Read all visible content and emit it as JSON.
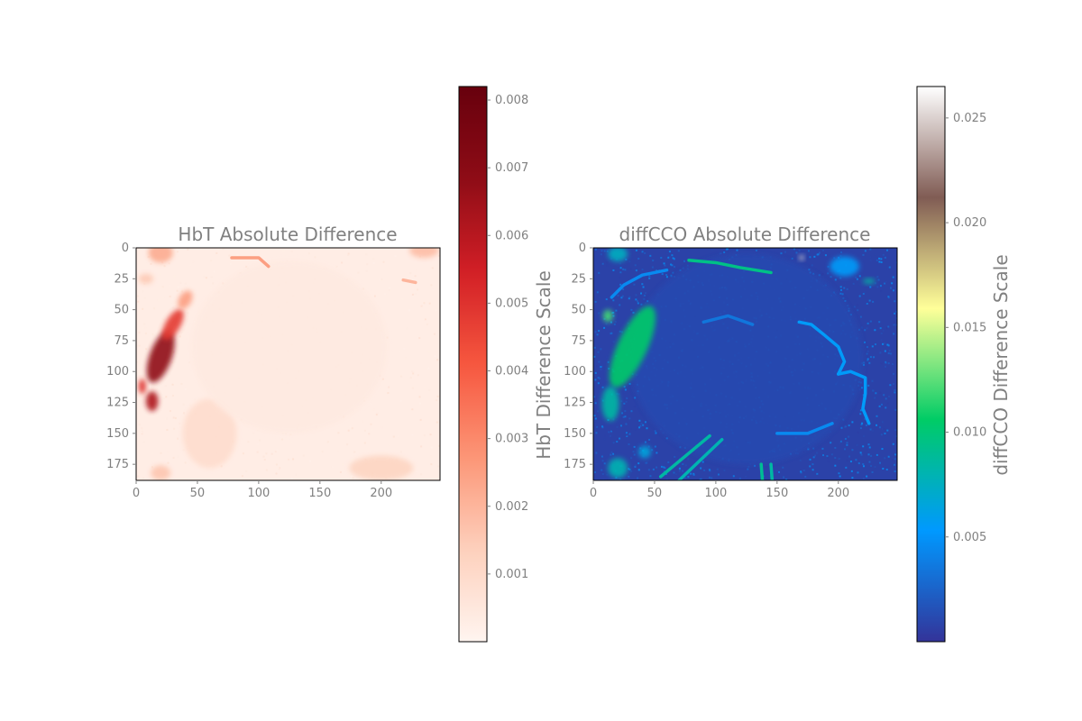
{
  "chart_data": [
    {
      "type": "heatmap",
      "title": "HbT Absolute Difference",
      "colormap": "Reds",
      "colormap_stops": [
        "#fff5f0",
        "#fdd0bc",
        "#fc9576",
        "#f6573f",
        "#d21f26",
        "#8e0c16",
        "#67000d"
      ],
      "xlim": [
        0,
        248
      ],
      "ylim": [
        188,
        0
      ],
      "x_ticks": [
        0,
        50,
        100,
        150,
        200
      ],
      "y_ticks": [
        0,
        25,
        50,
        75,
        100,
        125,
        150,
        175
      ],
      "colorbar": {
        "label": "HbT Difference Scale",
        "range": [
          0,
          0.0082
        ],
        "ticks": [
          "0.001",
          "0.002",
          "0.003",
          "0.004",
          "0.005",
          "0.006",
          "0.007",
          "0.008"
        ]
      },
      "features": [
        {
          "kind": "ellipse",
          "x": 20,
          "y": 88,
          "rx": 9,
          "ry": 22,
          "value": 0.0068,
          "rot": 20
        },
        {
          "kind": "ellipse",
          "x": 30,
          "y": 62,
          "rx": 6,
          "ry": 14,
          "value": 0.0048,
          "rot": 30
        },
        {
          "kind": "ellipse",
          "x": 13,
          "y": 124,
          "rx": 5,
          "ry": 8,
          "value": 0.0062,
          "rot": 0
        },
        {
          "kind": "ellipse",
          "x": 5,
          "y": 112,
          "rx": 3,
          "ry": 6,
          "value": 0.005,
          "rot": 0
        },
        {
          "kind": "ellipse",
          "x": 40,
          "y": 42,
          "rx": 5,
          "ry": 8,
          "value": 0.0025,
          "rot": 30
        },
        {
          "kind": "ellipse",
          "x": 20,
          "y": 4,
          "rx": 10,
          "ry": 8,
          "value": 0.0022,
          "rot": 0
        },
        {
          "kind": "ellipse",
          "x": 235,
          "y": 2,
          "rx": 12,
          "ry": 6,
          "value": 0.0018,
          "rot": 0
        },
        {
          "kind": "ellipse",
          "x": 8,
          "y": 25,
          "rx": 6,
          "ry": 4,
          "value": 0.0015,
          "rot": 0
        },
        {
          "kind": "ellipse",
          "x": 20,
          "y": 182,
          "rx": 8,
          "ry": 6,
          "value": 0.0016,
          "rot": 0
        },
        {
          "kind": "ellipse",
          "x": 60,
          "y": 150,
          "rx": 22,
          "ry": 28,
          "value": 0.0009,
          "rot": 0
        },
        {
          "kind": "ellipse",
          "x": 200,
          "y": 178,
          "rx": 26,
          "ry": 10,
          "value": 0.0012,
          "rot": 0
        },
        {
          "kind": "ellipse",
          "x": 125,
          "y": 80,
          "rx": 80,
          "ry": 70,
          "value": 0.0004,
          "rot": 0
        },
        {
          "kind": "line",
          "points": [
            [
              78,
              8
            ],
            [
              100,
              8
            ],
            [
              108,
              15
            ]
          ],
          "value": 0.0025
        },
        {
          "kind": "line",
          "points": [
            [
              218,
              26
            ],
            [
              228,
              28
            ]
          ],
          "value": 0.002
        }
      ]
    },
    {
      "type": "heatmap",
      "title": "diffCCO Absolute Difference",
      "colormap": "terrain_r",
      "colormap_stops": [
        "#333399",
        "#0099ff",
        "#00cc66",
        "#ffff99",
        "#805c54",
        "#ffffff"
      ],
      "xlim": [
        0,
        248
      ],
      "ylim": [
        188,
        0
      ],
      "x_ticks": [
        0,
        50,
        100,
        150,
        200
      ],
      "y_ticks": [
        0,
        25,
        50,
        75,
        100,
        125,
        150,
        175
      ],
      "colorbar": {
        "label": "diffCCO Difference Scale",
        "range": [
          0,
          0.0265
        ],
        "ticks": [
          "0.005",
          "0.010",
          "0.015",
          "0.020",
          "0.025"
        ]
      },
      "features": [
        {
          "kind": "ellipse",
          "x": 125,
          "y": 90,
          "rx": 95,
          "ry": 85,
          "value": 0.0012,
          "rot": 0
        },
        {
          "kind": "ellipse",
          "x": 32,
          "y": 80,
          "rx": 12,
          "ry": 36,
          "value": 0.0105,
          "rot": 25
        },
        {
          "kind": "ellipse",
          "x": 14,
          "y": 126,
          "rx": 7,
          "ry": 14,
          "value": 0.0085,
          "rot": 0
        },
        {
          "kind": "ellipse",
          "x": 12,
          "y": 55,
          "rx": 4,
          "ry": 5,
          "value": 0.012,
          "rot": 0
        },
        {
          "kind": "ellipse",
          "x": 20,
          "y": 5,
          "rx": 8,
          "ry": 6,
          "value": 0.0075,
          "rot": 0
        },
        {
          "kind": "ellipse",
          "x": 20,
          "y": 178,
          "rx": 8,
          "ry": 8,
          "value": 0.008,
          "rot": 0
        },
        {
          "kind": "ellipse",
          "x": 42,
          "y": 165,
          "rx": 5,
          "ry": 5,
          "value": 0.0065,
          "rot": 0
        },
        {
          "kind": "ellipse",
          "x": 225,
          "y": 27,
          "rx": 5,
          "ry": 2,
          "value": 0.0085,
          "rot": 0
        },
        {
          "kind": "ellipse",
          "x": 205,
          "y": 15,
          "rx": 12,
          "ry": 8,
          "value": 0.0055,
          "rot": 0
        },
        {
          "kind": "ellipse",
          "x": 170,
          "y": 8,
          "rx": 2,
          "ry": 2,
          "value": 0.025,
          "rot": 0
        },
        {
          "kind": "line",
          "points": [
            [
              78,
              10
            ],
            [
              100,
              12
            ],
            [
              120,
              16
            ],
            [
              145,
              20
            ]
          ],
          "value": 0.0095
        },
        {
          "kind": "line",
          "points": [
            [
              55,
              185
            ],
            [
              95,
              152
            ]
          ],
          "value": 0.0085
        },
        {
          "kind": "line",
          "points": [
            [
              70,
              188
            ],
            [
              105,
              155
            ]
          ],
          "value": 0.008
        },
        {
          "kind": "line",
          "points": [
            [
              137,
              175
            ],
            [
              138,
              188
            ]
          ],
          "value": 0.009
        },
        {
          "kind": "line",
          "points": [
            [
              145,
              175
            ],
            [
              146,
              188
            ]
          ],
          "value": 0.0085
        },
        {
          "kind": "line",
          "points": [
            [
              168,
              60
            ],
            [
              178,
              62
            ],
            [
              188,
              70
            ],
            [
              200,
              80
            ],
            [
              205,
              92
            ],
            [
              200,
              102
            ]
          ],
          "value": 0.0055
        },
        {
          "kind": "line",
          "points": [
            [
              200,
              102
            ],
            [
              210,
              100
            ],
            [
              222,
              105
            ],
            [
              222,
              118
            ],
            [
              220,
              130
            ],
            [
              225,
              142
            ]
          ],
          "value": 0.0055
        },
        {
          "kind": "line",
          "points": [
            [
              15,
              40
            ],
            [
              25,
              30
            ],
            [
              40,
              22
            ],
            [
              60,
              18
            ]
          ],
          "value": 0.0045
        },
        {
          "kind": "line",
          "points": [
            [
              150,
              150
            ],
            [
              175,
              150
            ],
            [
              195,
              142
            ]
          ],
          "value": 0.0045
        },
        {
          "kind": "line",
          "points": [
            [
              90,
              60
            ],
            [
              110,
              55
            ],
            [
              130,
              62
            ]
          ],
          "value": 0.0035
        }
      ]
    }
  ]
}
